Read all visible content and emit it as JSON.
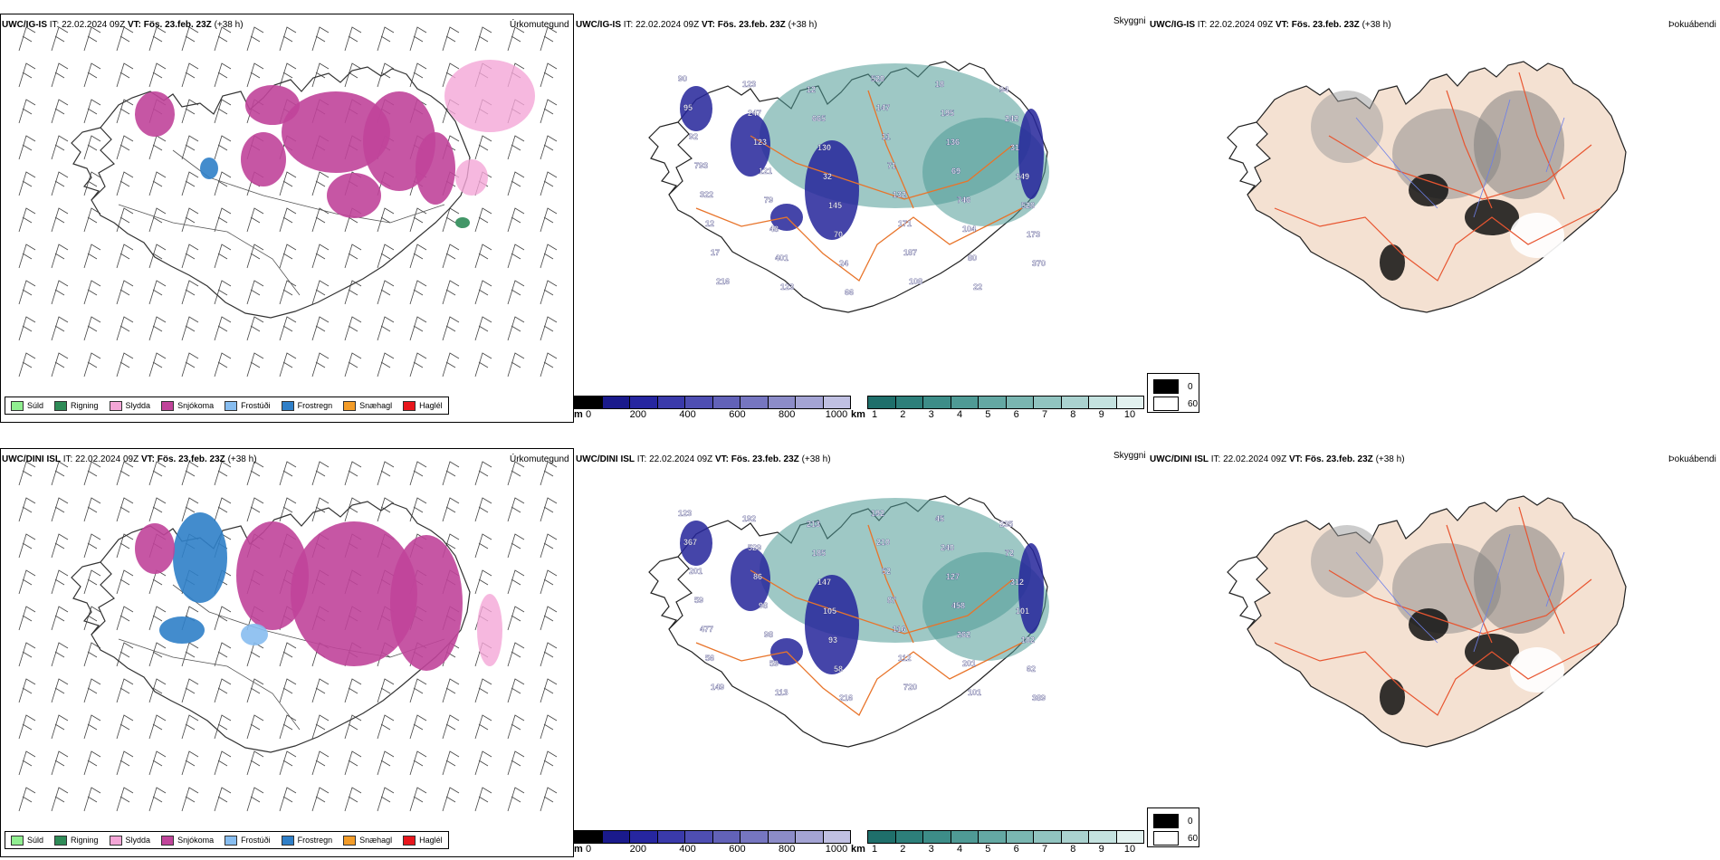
{
  "rows": [
    {
      "model": "UWC/IG-IS",
      "it_label": "IT:",
      "it_value": "22.02.2024 09Z",
      "vt_label": "VT:",
      "vt_value": "Fös. 23.feb. 23Z",
      "lead": "(+38 h)"
    },
    {
      "model": "UWC/DINI ISL",
      "it_label": "IT:",
      "it_value": "22.02.2024 09Z",
      "vt_label": "VT:",
      "vt_value": "Fös. 23.feb. 23Z",
      "lead": "(+38 h)"
    }
  ],
  "panel_titles": {
    "precip": "Úrkomutegund",
    "cloud": "Skyggni",
    "fog": "Þokuábendi"
  },
  "precip_legend": [
    {
      "label": "Súld",
      "color": "#90ee90"
    },
    {
      "label": "Rigning",
      "color": "#2e8b57"
    },
    {
      "label": "Slydda",
      "color": "#f4a6d7"
    },
    {
      "label": "Snjókoma",
      "color": "#c0449a"
    },
    {
      "label": "Frostúði",
      "color": "#87bdf0"
    },
    {
      "label": "Frostregn",
      "color": "#2f7fc8"
    },
    {
      "label": "Snæhagl",
      "color": "#f39c28"
    },
    {
      "label": "Haglél",
      "color": "#e8161c"
    }
  ],
  "cloud_base_bar": {
    "unit": "m",
    "ticks": [
      "0",
      "200",
      "400",
      "600",
      "800",
      "1000"
    ],
    "colors": [
      "#000000",
      "#1a1a8c",
      "#2626a0",
      "#3a3aaa",
      "#4e4eb2",
      "#6262b8",
      "#7676c0",
      "#8c8cc8",
      "#a4a4d4",
      "#c0c0e2"
    ]
  },
  "visibility_bar": {
    "unit": "km",
    "ticks": [
      "1",
      "2",
      "3",
      "4",
      "5",
      "6",
      "7",
      "8",
      "9",
      "10"
    ],
    "colors": [
      "#1f6f6b",
      "#2d7f7a",
      "#3d8d88",
      "#4f9a95",
      "#64a8a3",
      "#7ab6b1",
      "#91c4c0",
      "#aad2cf",
      "#c4e2df",
      "#e2f1ef"
    ]
  },
  "fog_legend": {
    "high": "0",
    "low": "60",
    "high_color": "#000000",
    "low_color": "#ffffff"
  },
  "map_labels": {
    "row1": [
      "90",
      "123",
      "12",
      "520",
      "18",
      "94",
      "95",
      "247",
      "665",
      "147",
      "195",
      "242",
      "92",
      "123",
      "130",
      "11",
      "136",
      "31",
      "793",
      "121",
      "32",
      "71",
      "69",
      "149",
      "322",
      "79",
      "145",
      "132",
      "746",
      "528",
      "12",
      "48",
      "70",
      "171",
      "104",
      "173",
      "17",
      "401",
      "24",
      "187",
      "80",
      "370",
      "216",
      "123",
      "66",
      "108",
      "22"
    ],
    "row2": [
      "123",
      "192",
      "213",
      "192",
      "45",
      "235",
      "367",
      "529",
      "185",
      "210",
      "240",
      "72",
      "201",
      "86",
      "147",
      "52",
      "127",
      "312",
      "59",
      "98",
      "105",
      "87",
      "458",
      "101",
      "477",
      "98",
      "93",
      "116",
      "262",
      "102",
      "56",
      "59",
      "58",
      "112",
      "201",
      "62",
      "149",
      "113",
      "216",
      "720",
      "101",
      "389"
    ]
  },
  "colors": {
    "snow": "#c0449a",
    "rain": "#2e8b57",
    "sleet": "#f4a6d7",
    "frost_drizzle": "#87bdf0",
    "freezing_rain": "#2f7fc8",
    "roads": "#e8742a",
    "fog_land": "#f4e1d2",
    "fog_roads": "#e85530",
    "fog_rivers": "#6d7fe8",
    "cloud_blue": "#25259a",
    "cloud_teal": "#4f9a95"
  }
}
